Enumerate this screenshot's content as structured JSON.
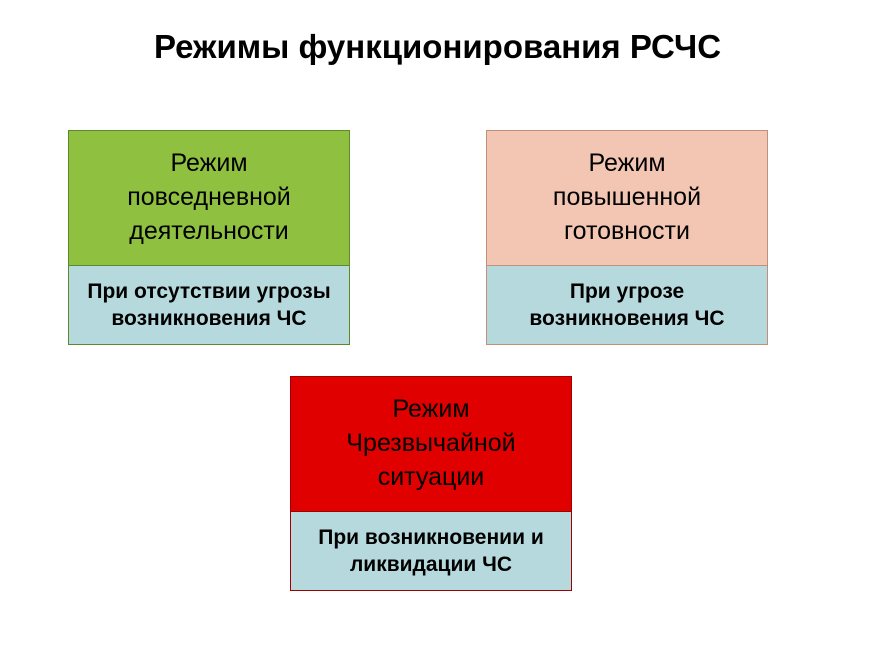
{
  "title": "Режимы функционирования РСЧС",
  "title_color": "#000000",
  "title_fontsize": 33,
  "background_color": "#ffffff",
  "boxes": [
    {
      "top_lines": [
        "Режим",
        "повседневной",
        "деятельности"
      ],
      "bottom_lines": [
        "При отсутствии угрозы",
        "возникновения ЧС"
      ],
      "top_bg": "#8fc040",
      "bottom_bg": "#b5d9dd",
      "border_color": "#5a8a2c",
      "top_text_color": "#000000",
      "bottom_text_color": "#000000"
    },
    {
      "top_lines": [
        "Режим",
        "повышенной",
        "готовности"
      ],
      "bottom_lines": [
        "При  угрозе",
        "возникновения ЧС"
      ],
      "top_bg": "#f3c5b3",
      "bottom_bg": "#b5d9dd",
      "border_color": "#c09078",
      "top_text_color": "#000000",
      "bottom_text_color": "#000000"
    },
    {
      "top_lines": [
        "Режим",
        "Чрезвычайной",
        "ситуации"
      ],
      "bottom_lines": [
        "При возникновении и",
        "ликвидации ЧС"
      ],
      "top_bg": "#e00000",
      "bottom_bg": "#b5d9dd",
      "border_color": "#a00000",
      "top_text_color": "#000000",
      "bottom_text_color": "#000000"
    }
  ]
}
